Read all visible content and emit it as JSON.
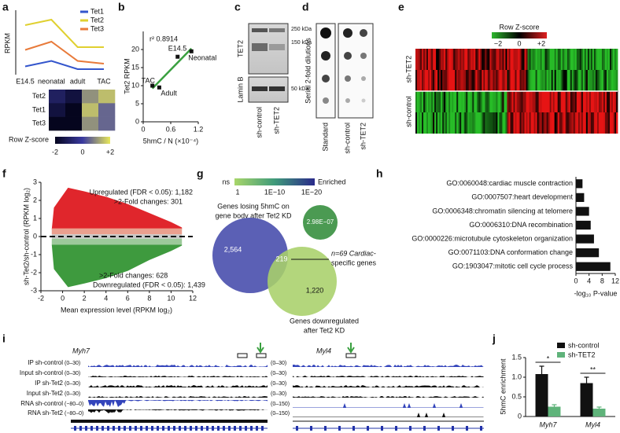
{
  "panel_labels": [
    "a",
    "b",
    "c",
    "d",
    "e",
    "f",
    "g",
    "h",
    "i",
    "j"
  ],
  "chart_data": [
    {
      "type": "line",
      "y_label": "RPKM",
      "categories": [
        "E14.5",
        "neonatal",
        "adult",
        "TAC"
      ],
      "ylim": [
        0,
        22
      ],
      "series": [
        {
          "name": "Tet1",
          "color": "#3355cc",
          "values": [
            3,
            5,
            2,
            2
          ]
        },
        {
          "name": "Tet2",
          "color": "#e0d030",
          "values": [
            18,
            20,
            10,
            10
          ]
        },
        {
          "name": "Tet3",
          "color": "#e87a3a",
          "values": [
            9,
            12,
            5,
            4
          ]
        }
      ]
    },
    {
      "type": "heatmap",
      "rows": [
        "Tet2",
        "Tet1",
        "Tet3"
      ],
      "values": [
        [
          -1,
          -1.5,
          1,
          1.5
        ],
        [
          -1.5,
          -2,
          1.5,
          0.5
        ],
        [
          -2,
          -2,
          1,
          0.5
        ]
      ],
      "zlim": [
        -2,
        2
      ],
      "colorbar_label": "Row Z-score",
      "colorbar_ticks": [
        -2,
        0,
        {
          "value": 2,
          "label": "+2"
        }
      ]
    },
    {
      "type": "scatter",
      "x_label": "5hmC / N (×10⁻⁴)",
      "y_label": "Tet2 RPKM",
      "annotation": "r² 0.8914",
      "color": "#3aa040",
      "x": [
        0.2,
        0.35,
        0.75,
        1.05
      ],
      "values": [
        10,
        9.5,
        18,
        19.5
      ],
      "point_labels": [
        "TAC",
        "Adult",
        "E14.5",
        "Neonatal"
      ],
      "xlim": [
        0,
        1.2
      ],
      "xticks": [
        0,
        0.6,
        1.2
      ],
      "ylim": [
        0,
        25
      ],
      "yticks": [
        0,
        5,
        10,
        15,
        20
      ]
    },
    {
      "type": "ma",
      "x_label": "Mean expression level (RPKM log₂)",
      "y_label": "sh-Tet2/sh-control (RPKM log₂)",
      "xlim": [
        -2,
        12
      ],
      "xticks": [
        -2,
        0,
        2,
        4,
        6,
        8,
        10,
        12
      ],
      "ylim": [
        -3,
        3
      ],
      "yticks": [
        -3,
        -2,
        -1,
        0,
        1,
        2,
        3
      ],
      "annotations": [
        "Upregulated (FDR < 0.05): 1,182",
        ">2-Fold changes: 301",
        ">2-Fold changes: 628",
        "Downregulated (FDR < 0.05): 1,439"
      ]
    },
    {
      "type": "barh",
      "x_label": "-log₁₀ P-value",
      "color": "#111111",
      "categories": [
        "GO:0060048:cardiac muscle contraction",
        "GO:0007507:heart development",
        "GO:0006348:chromatin silencing at telomere",
        "GO:0006310:DNA recombination",
        "GO:0000226:microtubule cytoskeleton organization",
        "GO:0071103:DNA conformation change",
        "GO:1903047:mitotic cell cycle process"
      ],
      "values": [
        2,
        2.5,
        4,
        4.5,
        5.5,
        7,
        10.5
      ],
      "xlim": [
        0,
        12
      ],
      "xticks": [
        0,
        4,
        8,
        12
      ]
    },
    {
      "type": "bar",
      "y_label": "5hmC enrichment",
      "categories": [
        "Myh7",
        "Myl4"
      ],
      "significance": [
        "*",
        "**"
      ],
      "series": [
        {
          "name": "sh-control",
          "color": "#111111",
          "values": [
            1.08,
            0.85
          ],
          "errors": [
            0.2,
            0.15
          ]
        },
        {
          "name": "sh-TET2",
          "color": "#5fb37a",
          "values": [
            0.25,
            0.2
          ],
          "errors": [
            0.05,
            0.04
          ]
        }
      ],
      "ylim": [
        0,
        1.5
      ],
      "yticks": [
        0,
        0.5,
        {
          "value": 1,
          "label": "1.0"
        },
        1.5
      ]
    }
  ],
  "western_blot": {
    "antibodies": [
      "TET2",
      "Lamin B"
    ],
    "markers": [
      "250 kDa",
      "150 kDa",
      "50 kDa"
    ],
    "lanes": [
      "sh-control",
      "sh-TET2"
    ]
  },
  "dot_blot": {
    "y_label": "Serial 2-fold dilutions",
    "lanes": [
      "Standard",
      "sh-control",
      "sh-TET2"
    ]
  },
  "expression_heatmap": {
    "colorbar_label": "Row Z-score",
    "colorbar_ticks": [
      "−2",
      "0",
      "+2"
    ],
    "groups": [
      "sh-TET2",
      "sh-control"
    ]
  },
  "venn": {
    "legend_low": "ns",
    "legend_high": "Enriched",
    "legend_ticks": [
      "1",
      "1E−10",
      "1E−20"
    ],
    "set_a": [
      "Genes losing 5hmC on",
      "gene body after Tet2 KD"
    ],
    "set_b": [
      "Genes downregulated",
      "after Tet2 KD"
    ],
    "only_a": "2,564",
    "overlap": "219",
    "only_b": "1,220",
    "p_value": "2.98E−07",
    "callout": [
      "n=69 Cardiac-",
      "specific genes"
    ]
  },
  "tracks": {
    "genes": [
      "Myh7",
      "Myl4"
    ],
    "names": [
      "IP sh-control",
      "Input sh-control",
      "IP sh-Tet2",
      "Input sh-Tet2",
      "RNA sh-control",
      "RNA sh-Tet2"
    ],
    "ranges_left": [
      "(0–30)",
      "(0–30)",
      "(0–30)",
      "(0–30)",
      "(−80–0)",
      "(−80–0)"
    ],
    "ranges_right": [
      "(0–30)",
      "(0–30)",
      "(0–30)",
      "(0–30)",
      "(0–150)",
      "(0–150)"
    ]
  }
}
